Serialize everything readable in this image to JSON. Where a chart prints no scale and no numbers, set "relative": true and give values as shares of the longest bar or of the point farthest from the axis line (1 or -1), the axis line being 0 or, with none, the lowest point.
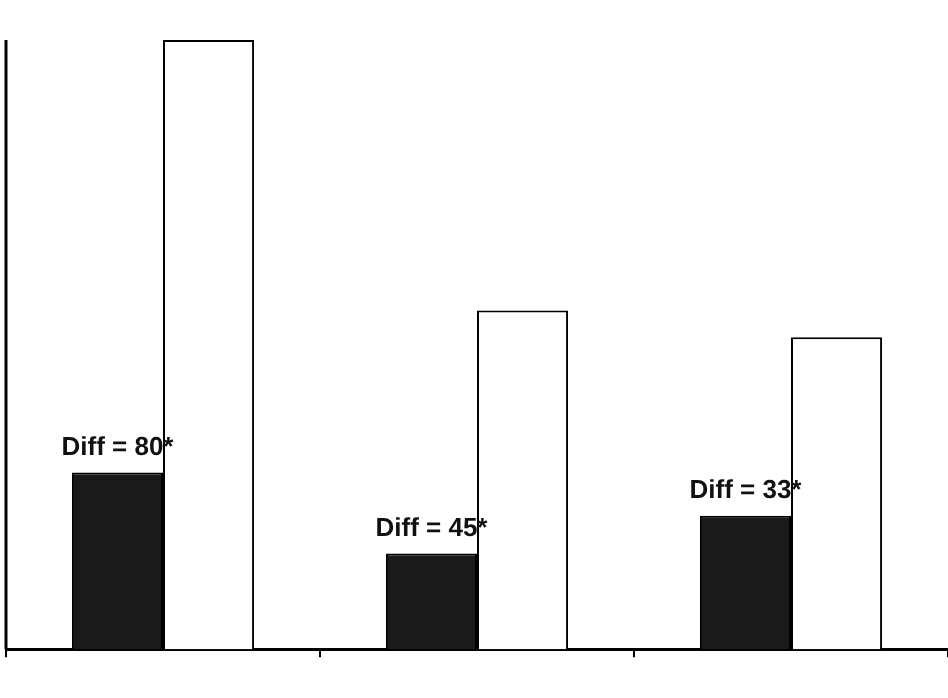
{
  "chart_data": {
    "type": "bar",
    "categories": [
      null,
      null,
      null
    ],
    "relative": true,
    "legend": false,
    "grid": false,
    "series": [
      {
        "color": "#1a1a1a",
        "values": [
          0.29,
          0.157,
          0.219
        ]
      },
      {
        "color": "#ffffff",
        "values": [
          1,
          0.556,
          0.512
        ]
      }
    ],
    "annotations": [
      "Diff = 80*",
      "Diff = 45*",
      "Diff = 33*"
    ]
  }
}
